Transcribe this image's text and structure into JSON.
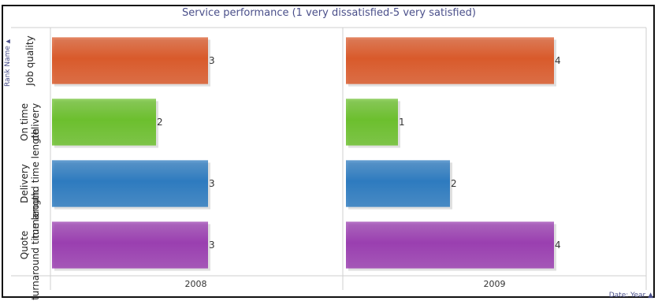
{
  "chart_data": {
    "type": "bar",
    "orientation": "horizontal",
    "title": "Service performance (1 very dissatisfied-5 very satisfied)",
    "row_facet_label": "Rank Name",
    "col_facet_label": "Date: Year",
    "categories": [
      "Job quality",
      "On time delivery",
      "Delivery turnaround time length",
      "Quote turnaround time length"
    ],
    "category_lines": [
      [
        "Job quality"
      ],
      [
        "On time",
        "delivery"
      ],
      [
        "Delivery",
        "turnaround time length"
      ],
      [
        "Quote",
        "turnaround time length"
      ]
    ],
    "panels": [
      {
        "name": "2008",
        "values": [
          3,
          2,
          3,
          3
        ]
      },
      {
        "name": "2009",
        "values": [
          4,
          1,
          2,
          4
        ]
      }
    ],
    "xlim": [
      0,
      5
    ],
    "grid": false,
    "colors": [
      "#d95a2b",
      "#6cbf2e",
      "#2e7bbf",
      "#9a3fb0"
    ]
  }
}
